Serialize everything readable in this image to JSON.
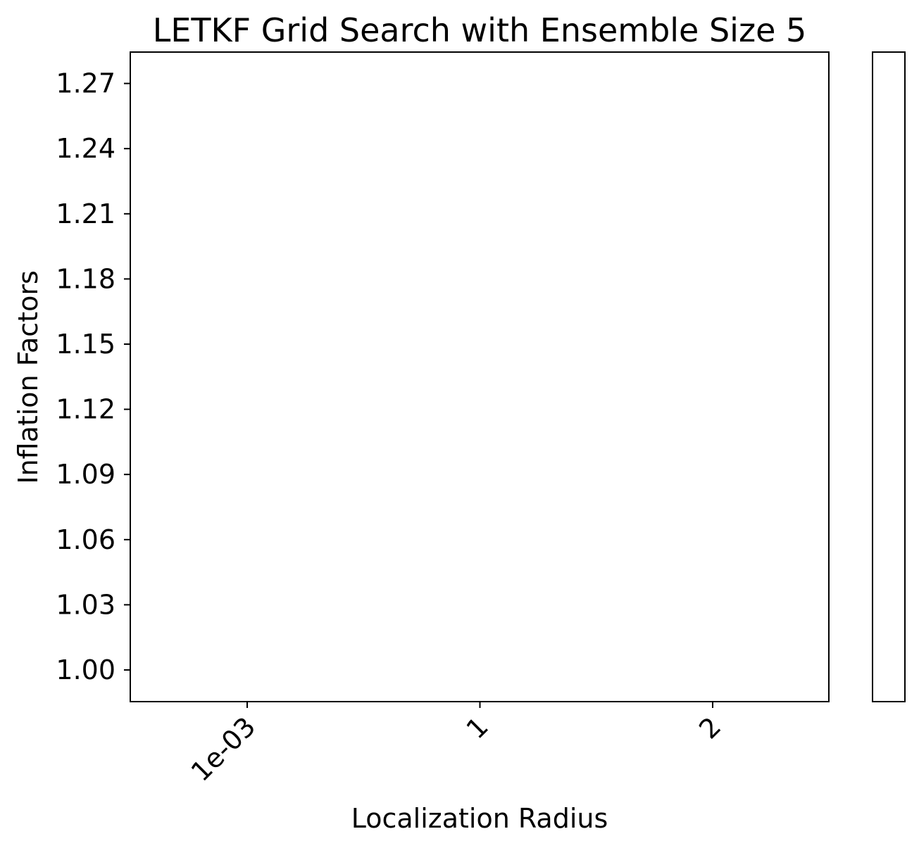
{
  "chart_data": {
    "type": "heatmap",
    "title": "LETKF Grid Search with Ensemble Size 5",
    "xlabel": "Localization Radius",
    "ylabel": "Inflation Factors",
    "x_categories": [
      "1e-03",
      "1",
      "2"
    ],
    "y_categories": [
      "1.00",
      "1.03",
      "1.06",
      "1.09",
      "1.12",
      "1.15",
      "1.18",
      "1.21",
      "1.24",
      "1.27"
    ],
    "values": [],
    "colorbar": true,
    "x_tick_rotation": 45,
    "grid": false,
    "colors": {
      "background": "#ffffff",
      "axis": "#000000",
      "text": "#000000"
    }
  }
}
